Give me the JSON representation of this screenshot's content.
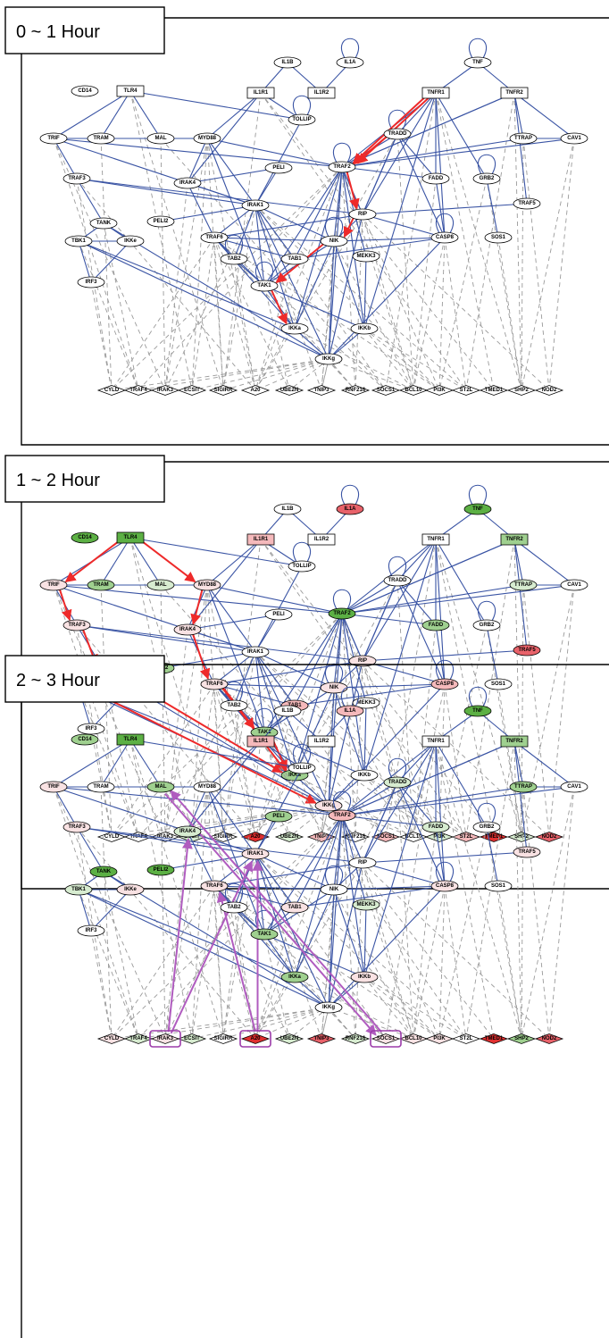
{
  "colors": {
    "white": "#ffffff",
    "pink_light": "#f9e2e3",
    "pink": "#f5b9bb",
    "red": "#e8626a",
    "red_dark": "#e03030",
    "green_light": "#d7ecd0",
    "green": "#9fd08f",
    "green_dark": "#5cb044",
    "edge_solid": "#3a54a4",
    "edge_dash": "#9a9a9a",
    "path_red": "#ee2a2a",
    "path_purple": "#b05cbf"
  },
  "nodes": [
    {
      "id": "IL1B",
      "label": "IL1B",
      "shape": "ellipse"
    },
    {
      "id": "IL1A",
      "label": "IL1A",
      "shape": "ellipse"
    },
    {
      "id": "IL1R1",
      "label": "IL1R1",
      "shape": "rect"
    },
    {
      "id": "IL1R2",
      "label": "IL1R2",
      "shape": "rect"
    },
    {
      "id": "TOLLIP",
      "label": "TOLLIP",
      "shape": "ellipse"
    },
    {
      "id": "CD14",
      "label": "CD14",
      "shape": "ellipse"
    },
    {
      "id": "TLR4",
      "label": "TLR4",
      "shape": "rect"
    },
    {
      "id": "TRIF",
      "label": "TRIF",
      "shape": "ellipse"
    },
    {
      "id": "TRAM",
      "label": "TRAM",
      "shape": "ellipse"
    },
    {
      "id": "MAL",
      "label": "MAL",
      "shape": "ellipse"
    },
    {
      "id": "MYD88",
      "label": "MYD88",
      "shape": "ellipse"
    },
    {
      "id": "PELI",
      "label": "PELI",
      "shape": "ellipse"
    },
    {
      "id": "IRAK4",
      "label": "IRAK4",
      "shape": "ellipse"
    },
    {
      "id": "TRAF3",
      "label": "TRAF3",
      "shape": "ellipse"
    },
    {
      "id": "TANK",
      "label": "TANK",
      "shape": "ellipse"
    },
    {
      "id": "PELI2",
      "label": "PELI2",
      "shape": "ellipse"
    },
    {
      "id": "IRAK1",
      "label": "IRAK1",
      "shape": "ellipse"
    },
    {
      "id": "TRAF6",
      "label": "TRAF6",
      "shape": "ellipse"
    },
    {
      "id": "TBK1",
      "label": "TBK1",
      "shape": "ellipse"
    },
    {
      "id": "IKKe",
      "label": "IKKe",
      "shape": "ellipse"
    },
    {
      "id": "IRF3",
      "label": "IRF3",
      "shape": "ellipse"
    },
    {
      "id": "TAB2",
      "label": "TAB2",
      "shape": "ellipse"
    },
    {
      "id": "TAB1",
      "label": "TAB1",
      "shape": "ellipse"
    },
    {
      "id": "TAK1",
      "label": "TAK1",
      "shape": "ellipse"
    },
    {
      "id": "IKKa",
      "label": "IKKa",
      "shape": "ellipse"
    },
    {
      "id": "IKKb",
      "label": "IKKb",
      "shape": "ellipse"
    },
    {
      "id": "IKKg",
      "label": "IKKg",
      "shape": "ellipse"
    },
    {
      "id": "NIK",
      "label": "NIK",
      "shape": "ellipse"
    },
    {
      "id": "MEKK3",
      "label": "MEKK3",
      "shape": "ellipse"
    },
    {
      "id": "RIP",
      "label": "RIP",
      "shape": "ellipse"
    },
    {
      "id": "TRAF2",
      "label": "TRAF2",
      "shape": "ellipse"
    },
    {
      "id": "TRADD",
      "label": "TRADD",
      "shape": "ellipse"
    },
    {
      "id": "FADD",
      "label": "FADD",
      "shape": "ellipse"
    },
    {
      "id": "CASP8",
      "label": "CASP8",
      "shape": "ellipse"
    },
    {
      "id": "TNF",
      "label": "TNF",
      "shape": "ellipse"
    },
    {
      "id": "TNFR1",
      "label": "TNFR1",
      "shape": "rect"
    },
    {
      "id": "TNFR2",
      "label": "TNFR2",
      "shape": "rect"
    },
    {
      "id": "TTRAP",
      "label": "TTRAP",
      "shape": "ellipse"
    },
    {
      "id": "CAV1",
      "label": "CAV1",
      "shape": "ellipse"
    },
    {
      "id": "GRB2",
      "label": "GRB2",
      "shape": "ellipse"
    },
    {
      "id": "TRAF5",
      "label": "TRAF5",
      "shape": "ellipse"
    },
    {
      "id": "SOS1",
      "label": "SOS1",
      "shape": "ellipse"
    },
    {
      "id": "CYLD",
      "label": "CYLD",
      "shape": "diamond"
    },
    {
      "id": "TRAF4",
      "label": "TRAF4",
      "shape": "diamond"
    },
    {
      "id": "IRAK3",
      "label": "IRAK3",
      "shape": "diamond"
    },
    {
      "id": "ECSIT",
      "label": "ECSIT",
      "shape": "diamond"
    },
    {
      "id": "SIGIRR",
      "label": "SIGIRR",
      "shape": "diamond"
    },
    {
      "id": "A20",
      "label": "A20",
      "shape": "diamond"
    },
    {
      "id": "UBE2N",
      "label": "UBE2N",
      "shape": "diamond"
    },
    {
      "id": "TNIP3",
      "label": "TNIP3",
      "shape": "diamond"
    },
    {
      "id": "RNF216",
      "label": "RNF216",
      "shape": "diamond"
    },
    {
      "id": "SOCS1",
      "label": "SOCS1",
      "shape": "diamond"
    },
    {
      "id": "BCL10",
      "label": "BCL10",
      "shape": "diamond"
    },
    {
      "id": "PI3K",
      "label": "PI3K",
      "shape": "diamond"
    },
    {
      "id": "ST2L",
      "label": "ST2L",
      "shape": "diamond"
    },
    {
      "id": "TMED1",
      "label": "TMED1",
      "shape": "diamond"
    },
    {
      "id": "SHP2",
      "label": "SHP2",
      "shape": "diamond"
    },
    {
      "id": "NOD2",
      "label": "NOD2",
      "shape": "diamond"
    }
  ],
  "solid_edges": [
    [
      "IL1B",
      "IL1R2"
    ],
    [
      "IL1A",
      "IL1R2"
    ],
    [
      "IL1B",
      "IL1R1"
    ],
    [
      "IL1R1",
      "TOLLIP"
    ],
    [
      "IL1R1",
      "MYD88"
    ],
    [
      "IL1R1",
      "IRAK4"
    ],
    [
      "TLR4",
      "TRIF"
    ],
    [
      "TLR4",
      "TRAM"
    ],
    [
      "TLR4",
      "MAL"
    ],
    [
      "TLR4",
      "TOLLIP"
    ],
    [
      "TRIF",
      "TRAM"
    ],
    [
      "TRIF",
      "TRAF3"
    ],
    [
      "TRIF",
      "TRAF2"
    ],
    [
      "TRIF",
      "IRAK1"
    ],
    [
      "MAL",
      "MYD88"
    ],
    [
      "TRAM",
      "MYD88"
    ],
    [
      "MYD88",
      "IRAK4"
    ],
    [
      "MYD88",
      "IRAK1"
    ],
    [
      "MYD88",
      "TRAF2"
    ],
    [
      "MYD88",
      "TAK1"
    ],
    [
      "PELI",
      "IRAK4"
    ],
    [
      "PELI",
      "IRAK1"
    ],
    [
      "IRAK4",
      "IRAK1"
    ],
    [
      "IRAK4",
      "TRAF6"
    ],
    [
      "TOLLIP",
      "IRAK1"
    ],
    [
      "TRAF3",
      "TANK"
    ],
    [
      "TRAF3",
      "IRAK1"
    ],
    [
      "TRAF3",
      "RIP"
    ],
    [
      "TANK",
      "TBK1"
    ],
    [
      "TANK",
      "IKKe"
    ],
    [
      "TANK",
      "IKKg"
    ],
    [
      "TBK1",
      "IKKe"
    ],
    [
      "TBK1",
      "IRF3"
    ],
    [
      "TBK1",
      "IKKg"
    ],
    [
      "IKKe",
      "IRF3"
    ],
    [
      "PELI2",
      "IRAK1"
    ],
    [
      "IRAK1",
      "TRAF6"
    ],
    [
      "IRAK1",
      "NIK"
    ],
    [
      "IRAK1",
      "TAB1"
    ],
    [
      "IRAK1",
      "TAK1"
    ],
    [
      "IRAK1",
      "IKKa"
    ],
    [
      "IRAK1",
      "IKKg"
    ],
    [
      "IRAK1",
      "TAB2"
    ],
    [
      "TRAF6",
      "TAB2"
    ],
    [
      "TRAF6",
      "TAB1"
    ],
    [
      "TRAF6",
      "TAK1"
    ],
    [
      "TRAF6",
      "IKKa"
    ],
    [
      "TRAF6",
      "NIK"
    ],
    [
      "TAB2",
      "TAK1"
    ],
    [
      "TAB1",
      "TAK1"
    ],
    [
      "TAK1",
      "IKKa"
    ],
    [
      "TAK1",
      "NIK"
    ],
    [
      "TAK1",
      "IKKb"
    ],
    [
      "IKKa",
      "IKKg"
    ],
    [
      "IKKb",
      "IKKg"
    ],
    [
      "NIK",
      "IKKa"
    ],
    [
      "NIK",
      "IKKb"
    ],
    [
      "NIK",
      "IKKg"
    ],
    [
      "NIK",
      "RIP"
    ],
    [
      "NIK",
      "CASP8"
    ],
    [
      "MEKK3",
      "IKKb"
    ],
    [
      "MEKK3",
      "TRAF2"
    ],
    [
      "RIP",
      "IKKg"
    ],
    [
      "RIP",
      "CASP8"
    ],
    [
      "RIP",
      "TRADD"
    ],
    [
      "RIP",
      "TRAF2"
    ],
    [
      "RIP",
      "TRAF6"
    ],
    [
      "TRAF2",
      "NIK"
    ],
    [
      "TRAF2",
      "IKKa"
    ],
    [
      "TRAF2",
      "IKKb"
    ],
    [
      "TRAF2",
      "IKKg"
    ],
    [
      "TRAF2",
      "TAK1"
    ],
    [
      "TRAF2",
      "TAB1"
    ],
    [
      "TRAF2",
      "RIP"
    ],
    [
      "TRAF2",
      "TRADD"
    ],
    [
      "TRAF2",
      "FADD"
    ],
    [
      "TRAF2",
      "TTRAP"
    ],
    [
      "TRAF2",
      "CAV1"
    ],
    [
      "TRAF2",
      "TNFR2"
    ],
    [
      "TNFR1",
      "TRADD"
    ],
    [
      "TNFR1",
      "TRAF2"
    ],
    [
      "TNFR1",
      "FADD"
    ],
    [
      "TNFR1",
      "RIP"
    ],
    [
      "TNFR1",
      "CASP8"
    ],
    [
      "TNFR1",
      "GRB2"
    ],
    [
      "TNFR1",
      "IKKb"
    ],
    [
      "TRADD",
      "FADD"
    ],
    [
      "TRADD",
      "CASP8"
    ],
    [
      "TRADD",
      "RIP"
    ],
    [
      "FADD",
      "CASP8"
    ],
    [
      "CASP8",
      "IKKg"
    ],
    [
      "CASP8",
      "TAB1"
    ],
    [
      "TNF",
      "TNFR1"
    ],
    [
      "TNF",
      "TNFR2"
    ],
    [
      "TNFR2",
      "TTRAP"
    ],
    [
      "TNFR2",
      "TRAF5"
    ],
    [
      "TNFR2",
      "CAV1"
    ],
    [
      "TNFR2",
      "TRAF2"
    ],
    [
      "TTRAP",
      "CAV1"
    ],
    [
      "GRB2",
      "SOS1"
    ],
    [
      "TRAF5",
      "RIP"
    ],
    [
      "IKKa",
      "TBK1"
    ]
  ],
  "self_loops": [
    "IL1A",
    "TOLLIP",
    "TNF",
    "TRADD",
    "TRAF2",
    "NIK",
    "TAB2",
    "TAK1",
    "GRB2",
    "CASP8"
  ],
  "dashed_edges": [
    [
      "TRIF",
      "TRAF4"
    ],
    [
      "TRIF",
      "IRAK3"
    ],
    [
      "TRAM",
      "CYLD"
    ],
    [
      "MAL",
      "IRAK3"
    ],
    [
      "MYD88",
      "ECSIT"
    ],
    [
      "MYD88",
      "SIGIRR"
    ],
    [
      "MYD88",
      "IRAK3"
    ],
    [
      "MYD88",
      "A20"
    ],
    [
      "TLR4",
      "SIGIRR"
    ],
    [
      "TLR4",
      "ECSIT"
    ],
    [
      "IL1R1",
      "SIGIRR"
    ],
    [
      "IL1R1",
      "ST2L"
    ],
    [
      "IL1R1",
      "TMED1"
    ],
    [
      "TRAF3",
      "CYLD"
    ],
    [
      "TRAF3",
      "A20"
    ],
    [
      "TANK",
      "TRAF4"
    ],
    [
      "TBK1",
      "TRAF4"
    ],
    [
      "IRF3",
      "CYLD"
    ],
    [
      "IRAK4",
      "IRAK3"
    ],
    [
      "IRAK1",
      "IRAK3"
    ],
    [
      "IRAK1",
      "SIGIRR"
    ],
    [
      "IRAK1",
      "SOCS1"
    ],
    [
      "IRAK1",
      "PI3K"
    ],
    [
      "IRAK1",
      "TNIP3"
    ],
    [
      "TRAF6",
      "A20"
    ],
    [
      "TRAF6",
      "UBE2N"
    ],
    [
      "TRAF6",
      "ECSIT"
    ],
    [
      "TRAF6",
      "CYLD"
    ],
    [
      "TRAF6",
      "SIGIRR"
    ],
    [
      "TRAF6",
      "SOCS1"
    ],
    [
      "TRAF6",
      "PI3K"
    ],
    [
      "TAB2",
      "A20"
    ],
    [
      "TAB2",
      "RNF216"
    ],
    [
      "TAB1",
      "A20"
    ],
    [
      "TAK1",
      "UBE2N"
    ],
    [
      "TAK1",
      "RNF216"
    ],
    [
      "IKKg",
      "A20"
    ],
    [
      "IKKg",
      "CYLD"
    ],
    [
      "IKKg",
      "TNIP3"
    ],
    [
      "IKKg",
      "UBE2N"
    ],
    [
      "IKKg",
      "RNF216"
    ],
    [
      "IKKg",
      "SIGIRR"
    ],
    [
      "IKKg",
      "BCL10"
    ],
    [
      "IKKg",
      "TRAF4"
    ],
    [
      "IKKg",
      "ECSIT"
    ],
    [
      "IKKa",
      "BCL10"
    ],
    [
      "IKKb",
      "PI3K"
    ],
    [
      "IKKb",
      "BCL10"
    ],
    [
      "IKKb",
      "ST2L"
    ],
    [
      "NIK",
      "TNIP3"
    ],
    [
      "NIK",
      "BCL10"
    ],
    [
      "RIP",
      "A20"
    ],
    [
      "RIP",
      "RNF216"
    ],
    [
      "RIP",
      "TNIP3"
    ],
    [
      "RIP",
      "NOD2"
    ],
    [
      "RIP",
      "BCL10"
    ],
    [
      "RIP",
      "PI3K"
    ],
    [
      "TRAF2",
      "A20"
    ],
    [
      "TRAF2",
      "CYLD"
    ],
    [
      "TRAF2",
      "RNF216"
    ],
    [
      "TRAF2",
      "BCL10"
    ],
    [
      "TRAF2",
      "TRAF4"
    ],
    [
      "TRAF2",
      "TNIP3"
    ],
    [
      "TRADD",
      "A20"
    ],
    [
      "TRADD",
      "BCL10"
    ],
    [
      "FADD",
      "BCL10"
    ],
    [
      "CASP8",
      "BCL10"
    ],
    [
      "CASP8",
      "PI3K"
    ],
    [
      "CASP8",
      "ST2L"
    ],
    [
      "TNFR1",
      "SHP2"
    ],
    [
      "TNFR1",
      "SOCS1"
    ],
    [
      "TNFR1",
      "TMED1"
    ],
    [
      "TNFR2",
      "SHP2"
    ],
    [
      "TNFR2",
      "ST2L"
    ],
    [
      "GRB2",
      "SHP2"
    ],
    [
      "GRB2",
      "PI3K"
    ],
    [
      "SOS1",
      "SHP2"
    ],
    [
      "TTRAP",
      "NOD2"
    ],
    [
      "TTRAP",
      "SHP2"
    ],
    [
      "CAV1",
      "SHP2"
    ],
    [
      "CAV1",
      "NOD2"
    ],
    [
      "IRAK1",
      "ST2L"
    ],
    [
      "MAL",
      "SOCS1"
    ]
  ],
  "panels": [
    {
      "title": "0 ~ 1 Hour",
      "fills": {},
      "red_paths": [
        [
          "TNFR1",
          "TRAF2"
        ],
        [
          "TNFR1",
          "TRAF2b"
        ],
        [
          "TRAF2",
          "RIP"
        ],
        [
          "RIP",
          "NIK"
        ],
        [
          "NIK",
          "TAK1"
        ],
        [
          "TAK1",
          "IKKa"
        ],
        [
          "TRADD",
          "TRAF2"
        ]
      ],
      "purple_paths": [],
      "highlight_boxes": []
    },
    {
      "title": "1 ~ 2 Hour",
      "fills": {
        "IL1A": "red",
        "IL1R1": "pink",
        "TNF": "green_dark",
        "TNFR2": "green",
        "CD14": "green_dark",
        "TLR4": "green_dark",
        "TRAM": "green",
        "MAL": "green_light",
        "TRIF": "pink_light",
        "MYD88": "pink_light",
        "TRAF2": "green_dark",
        "FADD": "green",
        "TTRAP": "green_light",
        "TRAF5": "red",
        "TRAF3": "pink_light",
        "TANK": "green",
        "PELI2": "green",
        "IRAK4": "pink_light",
        "IRAK1": "white",
        "TRAF6": "pink_light",
        "NIK": "pink_light",
        "CASP8": "pink",
        "RIP": "pink_light",
        "TBK1": "green_light",
        "TAB1": "pink",
        "TAK1": "green",
        "IKKa": "green",
        "IKKg": "pink_light",
        "ECSIT": "green_light",
        "A20": "red_dark",
        "UBE2N": "green_light",
        "TNIP3": "pink",
        "SOCS1": "pink",
        "PI3K": "green_light",
        "ST2L": "pink",
        "TMED1": "red_dark",
        "SHP2": "green_light",
        "NOD2": "red"
      },
      "red_paths": [
        [
          "TLR4",
          "TRIF"
        ],
        [
          "TLR4",
          "MYD88"
        ],
        [
          "TRIF",
          "TRAF3"
        ],
        [
          "TRAF3",
          "TANK"
        ],
        [
          "TANK",
          "TBK1"
        ],
        [
          "TBK1",
          "IKKg"
        ],
        [
          "TANK",
          "IKKa"
        ],
        [
          "MYD88",
          "IRAK4"
        ],
        [
          "IRAK4",
          "TRAF6"
        ],
        [
          "TRAF6",
          "TAK1"
        ],
        [
          "TAK1",
          "IKKa"
        ],
        [
          "TRAF6",
          "IKKa"
        ]
      ],
      "purple_paths": [],
      "highlight_boxes": []
    },
    {
      "title": "2 ~ 3 Hour",
      "fills": {
        "IL1A": "pink",
        "IL1R1": "pink",
        "TNF": "green_dark",
        "TNFR2": "green",
        "CD14": "green",
        "TLR4": "green_dark",
        "TRAM": "white",
        "MAL": "green",
        "TRIF": "pink_light",
        "MYD88": "white",
        "PELI": "green",
        "IRAK4": "green_light",
        "TRAF2": "pink",
        "TRADD": "green_light",
        "FADD": "green_light",
        "TTRAP": "green",
        "TRAF5": "pink_light",
        "TRAF3": "pink_light",
        "TANK": "green_dark",
        "PELI2": "green_dark",
        "IRAK1": "pink_light",
        "TRAF6": "pink_light",
        "CASP8": "pink_light",
        "TBK1": "green_light",
        "IKKe": "pink_light",
        "TAB1": "pink_light",
        "MEKK3": "green_light",
        "TAK1": "green",
        "IKKa": "green",
        "IKKb": "pink_light",
        "CYLD": "pink_light",
        "TRAF4": "green_light",
        "IRAK3": "pink_light",
        "ECSIT": "green_light",
        "A20": "red_dark",
        "UBE2N": "green_light",
        "TNIP3": "red",
        "RNF216": "green_light",
        "SOCS1": "pink_light",
        "BCL10": "pink_light",
        "PI3K": "pink_light",
        "ST2L": "white",
        "TMED1": "red_dark",
        "SHP2": "green",
        "NOD2": "red"
      },
      "red_paths": [],
      "purple_paths": [
        [
          "IRAK3",
          "IRAK4"
        ],
        [
          "IRAK3",
          "IRAK1"
        ],
        [
          "A20",
          "TRAF6"
        ],
        [
          "A20",
          "IRAK1"
        ],
        [
          "SOCS1",
          "MAL"
        ],
        [
          "MAL",
          "SOCS1"
        ]
      ],
      "highlight_boxes": [
        "IRAK3",
        "A20",
        "SOCS1"
      ]
    }
  ]
}
